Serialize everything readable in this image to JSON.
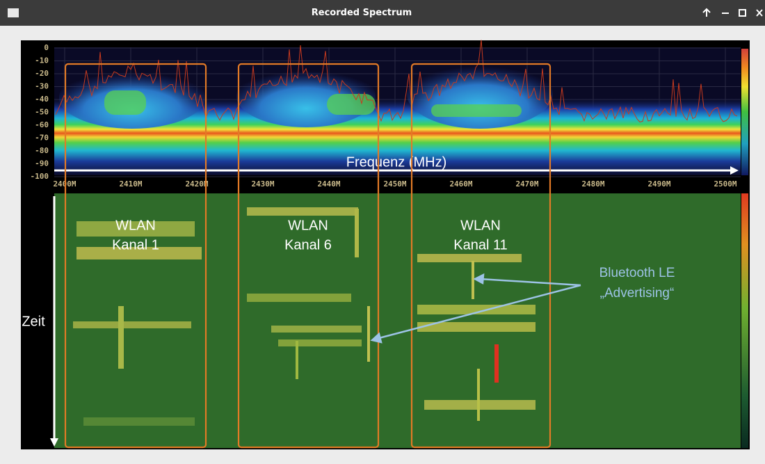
{
  "window": {
    "title": "Recorded Spectrum"
  },
  "spectrum": {
    "y_axis_labels": [
      "0",
      "-10",
      "-20",
      "-30",
      "-40",
      "-50",
      "-60",
      "-70",
      "-80",
      "-90",
      "-100"
    ],
    "x_axis_labels": [
      "2400M",
      "2410M",
      "2420M",
      "2430M",
      "2440M",
      "2450M",
      "2460M",
      "2470M",
      "2480M",
      "2490M",
      "2500M"
    ],
    "axis_label": "Frequenz (MHz)"
  },
  "waterfall": {
    "time_label": "Zeit",
    "channels": [
      {
        "line1": "WLAN",
        "line2": "Kanal 1"
      },
      {
        "line1": "WLAN",
        "line2": "Kanal 6"
      },
      {
        "line1": "WLAN",
        "line2": "Kanal 11"
      }
    ],
    "annotation": {
      "line1": "Bluetooth LE",
      "line2": "„Advertising“"
    }
  }
}
